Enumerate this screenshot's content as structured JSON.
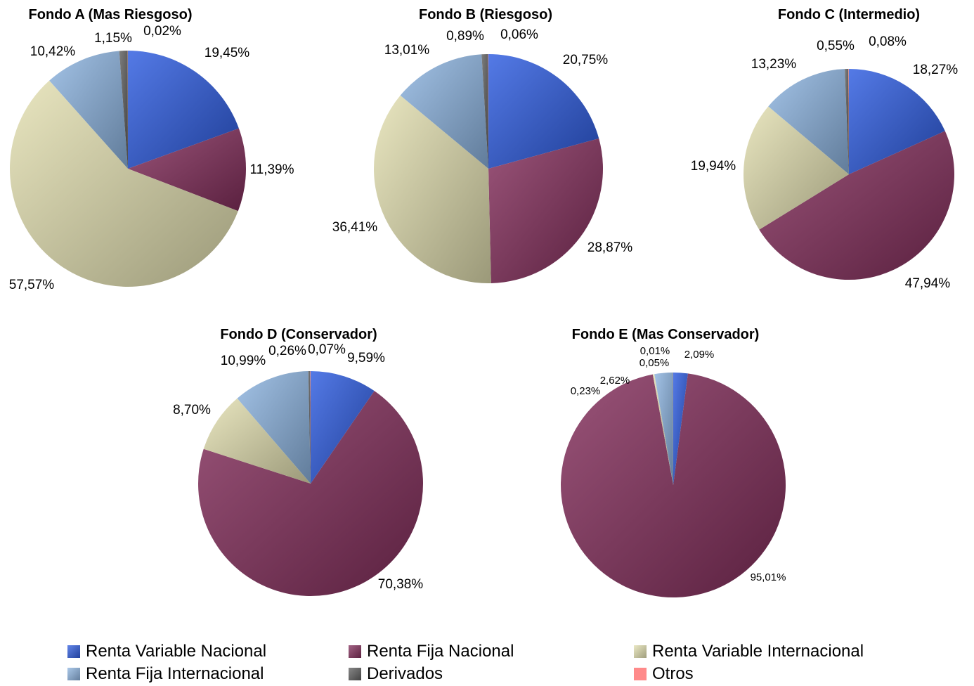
{
  "colors": {
    "Renta Variable Nacional": "#2f5de0",
    "Renta Fija Nacional": "#842f5c",
    "Renta Variable Internacional": "#e4e1b2",
    "Renta Fija Internacional": "#8fb6e2",
    "Derivados": "#606060",
    "Otros": "#ff8a8a"
  },
  "legend": {
    "items": [
      "Renta Variable Nacional",
      "Renta Fija Nacional",
      "Renta Variable Internacional",
      "Renta Fija Internacional",
      "Derivados",
      "Otros"
    ]
  },
  "chart_data": [
    {
      "type": "pie",
      "title": "Fondo A (Mas Riesgoso)",
      "slices": [
        {
          "name": "Renta Variable Nacional",
          "value": 19.45,
          "label": "19,45%"
        },
        {
          "name": "Renta Fija Nacional",
          "value": 11.39,
          "label": "11,39%"
        },
        {
          "name": "Renta Variable Internacional",
          "value": 57.57,
          "label": "57,57%"
        },
        {
          "name": "Renta Fija Internacional",
          "value": 10.42,
          "label": "10,42%"
        },
        {
          "name": "Derivados",
          "value": 1.15,
          "label": "1,15%"
        },
        {
          "name": "Otros",
          "value": 0.02,
          "label": "0,02%"
        }
      ]
    },
    {
      "type": "pie",
      "title": "Fondo B (Riesgoso)",
      "slices": [
        {
          "name": "Renta Variable Nacional",
          "value": 20.75,
          "label": "20,75%"
        },
        {
          "name": "Renta Fija Nacional",
          "value": 28.87,
          "label": "28,87%"
        },
        {
          "name": "Renta Variable Internacional",
          "value": 36.41,
          "label": "36,41%"
        },
        {
          "name": "Renta Fija Internacional",
          "value": 13.01,
          "label": "13,01%"
        },
        {
          "name": "Derivados",
          "value": 0.89,
          "label": "0,89%"
        },
        {
          "name": "Otros",
          "value": 0.06,
          "label": "0,06%"
        }
      ]
    },
    {
      "type": "pie",
      "title": "Fondo C (Intermedio)",
      "slices": [
        {
          "name": "Renta Variable Nacional",
          "value": 18.27,
          "label": "18,27%"
        },
        {
          "name": "Renta Fija Nacional",
          "value": 47.94,
          "label": "47,94%"
        },
        {
          "name": "Renta Variable Internacional",
          "value": 19.94,
          "label": "19,94%"
        },
        {
          "name": "Renta Fija Internacional",
          "value": 13.23,
          "label": "13,23%"
        },
        {
          "name": "Derivados",
          "value": 0.55,
          "label": "0,55%"
        },
        {
          "name": "Otros",
          "value": 0.08,
          "label": "0,08%"
        }
      ]
    },
    {
      "type": "pie",
      "title": "Fondo D (Conservador)",
      "slices": [
        {
          "name": "Renta Variable Nacional",
          "value": 9.59,
          "label": "9,59%"
        },
        {
          "name": "Renta Fija Nacional",
          "value": 70.38,
          "label": "70,38%"
        },
        {
          "name": "Renta Variable Internacional",
          "value": 8.7,
          "label": "8,70%"
        },
        {
          "name": "Renta Fija Internacional",
          "value": 10.99,
          "label": "10,99%"
        },
        {
          "name": "Derivados",
          "value": 0.26,
          "label": "0,26%"
        },
        {
          "name": "Otros",
          "value": 0.07,
          "label": "0,07%"
        }
      ]
    },
    {
      "type": "pie",
      "title": "Fondo E (Mas Conservador)",
      "slices": [
        {
          "name": "Renta Variable Nacional",
          "value": 2.09,
          "label": "2,09%"
        },
        {
          "name": "Renta Fija Nacional",
          "value": 95.01,
          "label": "95,01%"
        },
        {
          "name": "Renta Variable Internacional",
          "value": 0.23,
          "label": "0,23%"
        },
        {
          "name": "Renta Fija Internacional",
          "value": 2.62,
          "label": "2,62%"
        },
        {
          "name": "Derivados",
          "value": 0.05,
          "label": "0,05%"
        },
        {
          "name": "Otros",
          "value": 0.01,
          "label": "0,01%"
        }
      ]
    }
  ]
}
